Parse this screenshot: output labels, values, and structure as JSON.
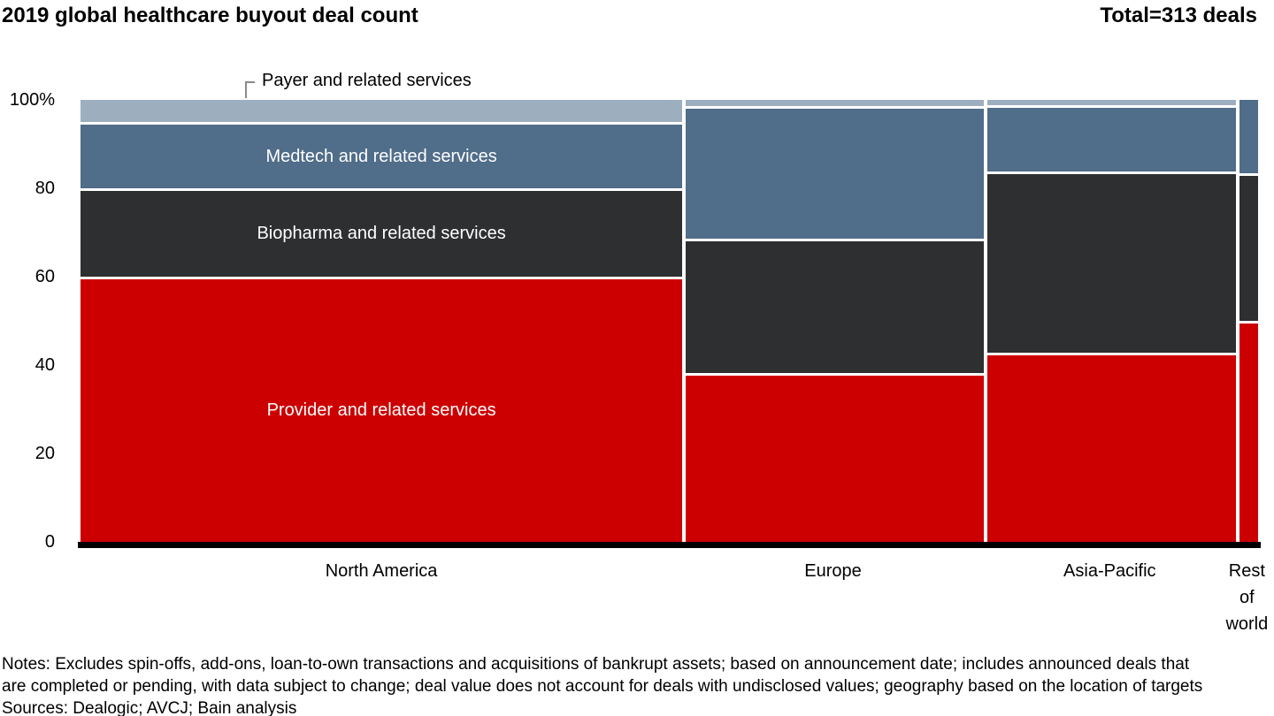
{
  "header": {
    "title": "2019 global healthcare buyout deal count",
    "total_label": "Total=313 deals"
  },
  "chart_data": {
    "type": "marimekko",
    "title": "2019 global healthcare buyout deal count",
    "total_annotation": "Total=313 deals",
    "value_unit": "percent of deal count",
    "y_axis": {
      "range": [
        0,
        100
      ],
      "grid": false,
      "ticks": [
        {
          "label": "100%",
          "value": 100
        },
        {
          "label": "80",
          "value": 80
        },
        {
          "label": "60",
          "value": 60
        },
        {
          "label": "40",
          "value": 40
        },
        {
          "label": "20",
          "value": 20
        },
        {
          "label": "0",
          "value": 0
        }
      ]
    },
    "series_top_to_bottom": [
      {
        "key": "payer",
        "name": "Payer and related services",
        "color": "#9DAFBF"
      },
      {
        "key": "medtech",
        "name": "Medtech and related services",
        "color": "#506D89"
      },
      {
        "key": "biopharma",
        "name": "Biopharma and related services",
        "color": "#2E2F31"
      },
      {
        "key": "provider",
        "name": "Provider and related services",
        "color": "#CC0000"
      }
    ],
    "columns": [
      {
        "label": "North America",
        "width_pct": 51.1,
        "values": {
          "payer": 5,
          "medtech": 15,
          "biopharma": 20,
          "provider": 60
        },
        "segment_labels": {
          "medtech": "Medtech and related services",
          "biopharma": "Biopharma and related services",
          "provider": "Provider and related services"
        }
      },
      {
        "label": "Europe",
        "width_pct": 25.6,
        "values": {
          "payer": 1.4,
          "medtech": 30,
          "biopharma": 30.4,
          "provider": 38.2
        },
        "segment_labels": {}
      },
      {
        "label": "Asia-Pacific",
        "width_pct": 21.4,
        "values": {
          "payer": 1.2,
          "medtech": 15,
          "biopharma": 41,
          "provider": 42.8
        },
        "segment_labels": {}
      },
      {
        "label": "Rest of world",
        "width_pct": 1.9,
        "values": {
          "payer": 0,
          "medtech": 16.6,
          "biopharma": 33.4,
          "provider": 50
        },
        "segment_labels": {}
      }
    ],
    "callout": {
      "label": "Payer and related services",
      "points_to": "payer"
    },
    "baseline_color": "#000000",
    "background": "#ffffff"
  },
  "notes": {
    "lines": [
      "Notes: Excludes spin-offs, add-ons, loan-to-own transactions and acquisitions of bankrupt assets; based on announcement date; includes announced deals that",
      "are completed or pending, with data subject to change; deal value does not account for deals with undisclosed values; geography based on the location of targets"
    ],
    "sources": "Sources: Dealogic; AVCJ; Bain analysis"
  }
}
